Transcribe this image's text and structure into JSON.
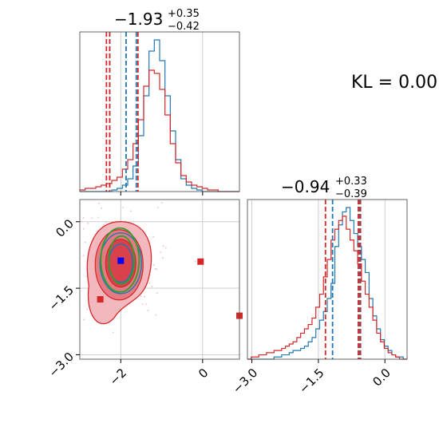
{
  "chart_data": {
    "type": "corner",
    "kl_label": "KL = 0.00",
    "params": [
      {
        "median": "−1.93",
        "plus": "+0.35",
        "minus": "−0.42",
        "range": [
          -3.0,
          0.9
        ],
        "ticks": [
          {
            "v": -2,
            "label": "−2"
          },
          {
            "v": 0,
            "label": "0"
          }
        ],
        "lines_red": [
          -2.35,
          -2.27,
          -1.58
        ],
        "lines_blue": [
          -2.27,
          -1.87,
          -1.62
        ],
        "hist_blue": [
          0,
          0,
          0,
          0,
          0,
          0,
          1,
          2,
          4,
          8,
          16,
          35,
          60,
          88,
          95,
          82,
          60,
          38,
          20,
          8,
          4,
          2,
          1,
          0,
          0,
          0,
          0,
          0,
          0,
          0
        ],
        "hist_red": [
          1,
          2,
          2,
          3,
          4,
          5,
          7,
          9,
          14,
          20,
          30,
          45,
          66,
          76,
          74,
          64,
          48,
          30,
          18,
          10,
          6,
          4,
          3,
          2,
          1,
          1,
          0,
          0,
          0,
          0
        ]
      },
      {
        "median": "−0.94",
        "plus": "+0.33",
        "minus": "−0.39",
        "range": [
          -3.1,
          0.5
        ],
        "ticks": [
          {
            "v": -3.0,
            "label": "−3.0"
          },
          {
            "v": -1.5,
            "label": "−1.5"
          },
          {
            "v": 0.0,
            "label": "0.0"
          }
        ],
        "lines_red": [
          -1.34,
          -0.6,
          -0.55
        ],
        "lines_blue": [
          -1.18,
          -0.57
        ],
        "hist_blue": [
          0,
          0,
          0,
          0,
          0,
          0,
          0,
          1,
          1,
          2,
          2,
          3,
          4,
          4,
          5,
          6,
          8,
          10,
          14,
          18,
          22,
          28,
          35,
          52,
          62,
          68,
          70,
          64,
          58,
          52,
          46,
          40,
          28,
          20,
          14,
          9,
          6,
          4,
          2,
          1,
          1,
          0
        ],
        "hist_red": [
          0,
          1,
          1,
          2,
          2,
          3,
          3,
          4,
          4,
          5,
          6,
          7,
          8,
          10,
          12,
          14,
          16,
          19,
          24,
          30,
          38,
          46,
          55,
          60,
          64,
          66,
          60,
          55,
          50,
          44,
          36,
          30,
          24,
          18,
          12,
          8,
          5,
          3,
          2,
          1,
          0,
          0
        ]
      }
    ],
    "scatter_2d": {
      "xlim": [
        -3.0,
        0.9
      ],
      "ylim": [
        -3.1,
        0.5
      ],
      "xticks": [
        {
          "v": -2,
          "label": "−2"
        },
        {
          "v": 0,
          "label": "0"
        }
      ],
      "yticks": [
        {
          "v": 0.0,
          "label": "0.0"
        },
        {
          "v": -1.5,
          "label": "−1.5"
        },
        {
          "v": -3.0,
          "label": "−3.0"
        }
      ],
      "red_squares": [
        {
          "x": -0.05,
          "y": -0.9
        },
        {
          "x": 0.9,
          "y": -2.12
        },
        {
          "x": -2.5,
          "y": -1.75
        }
      ],
      "blue_square": {
        "x": -2.0,
        "y": -0.88
      },
      "center": {
        "x": -2.0,
        "y": -0.9
      }
    },
    "colors": {
      "red": "#d62728",
      "blue": "#1f77b4",
      "green": "#2ca02c",
      "grid": "#c8c8c8"
    }
  }
}
